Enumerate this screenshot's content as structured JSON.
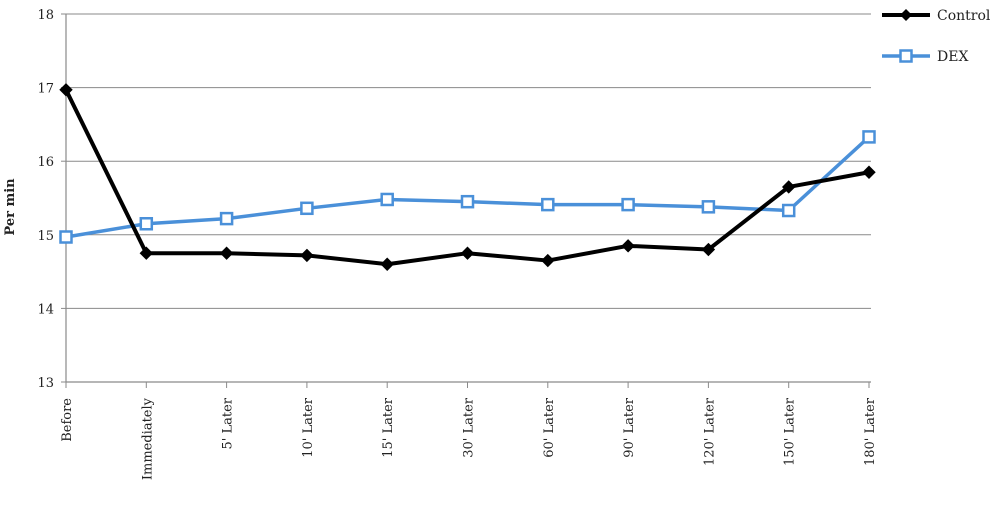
{
  "chart_data": {
    "type": "line",
    "title": "",
    "xlabel": "",
    "ylabel": "Per min",
    "ylim": [
      13,
      18
    ],
    "yticks": [
      13,
      14,
      15,
      16,
      17,
      18
    ],
    "grid": "horizontal",
    "legend_position": "right",
    "categories": [
      "Before",
      "Immediately",
      "5' Later",
      "10' Later",
      "15' Later",
      "30' Later",
      "60' Later",
      "90' Later",
      "120' Later",
      "150' Later",
      "180' Later"
    ],
    "series": [
      {
        "name": "Control",
        "color": "#000000",
        "marker": "diamond",
        "values": [
          16.97,
          14.75,
          14.75,
          14.72,
          14.6,
          14.75,
          14.65,
          14.85,
          14.8,
          15.65,
          15.85
        ]
      },
      {
        "name": "DEX",
        "color": "#4a90d9",
        "marker": "square",
        "values": [
          14.97,
          15.15,
          15.22,
          15.36,
          15.48,
          15.45,
          15.41,
          15.41,
          15.38,
          15.33,
          16.33
        ]
      }
    ]
  }
}
